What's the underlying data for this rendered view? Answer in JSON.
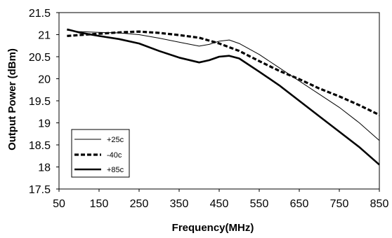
{
  "chart_data": {
    "type": "line",
    "title": "",
    "xlabel": "Frequency(MHz)",
    "ylabel": "Output Power (dBm)",
    "xlim": [
      50,
      850
    ],
    "ylim": [
      17.5,
      21.5
    ],
    "x_ticks": [
      "50",
      "150",
      "250",
      "350",
      "450",
      "550",
      "650",
      "750",
      "850"
    ],
    "y_ticks": [
      "17.5",
      "18",
      "18.5",
      "19",
      "19.5",
      "20",
      "20.5",
      "21",
      "21.5"
    ],
    "grid": false,
    "legend_position": "bottom-left",
    "series": [
      {
        "name": "+25c",
        "style": "thin",
        "color": "#000000",
        "x": [
          70,
          100,
          150,
          200,
          250,
          300,
          350,
          400,
          425,
          450,
          475,
          500,
          550,
          600,
          650,
          700,
          750,
          800,
          850
        ],
        "y": [
          21.1,
          21.07,
          21.05,
          21.04,
          21.0,
          20.92,
          20.83,
          20.74,
          20.78,
          20.85,
          20.88,
          20.8,
          20.55,
          20.25,
          19.95,
          19.65,
          19.35,
          19.0,
          18.6
        ]
      },
      {
        "name": "-40c",
        "style": "dashed",
        "color": "#000000",
        "x": [
          70,
          100,
          150,
          200,
          250,
          300,
          350,
          400,
          450,
          500,
          550,
          600,
          650,
          700,
          750,
          800,
          850
        ],
        "y": [
          20.97,
          20.99,
          21.02,
          21.05,
          21.07,
          21.04,
          20.99,
          20.93,
          20.8,
          20.63,
          20.4,
          20.18,
          19.99,
          19.78,
          19.6,
          19.4,
          19.18
        ]
      },
      {
        "name": "+85c",
        "style": "thick",
        "color": "#000000",
        "x": [
          70,
          100,
          150,
          200,
          250,
          300,
          350,
          400,
          425,
          450,
          475,
          500,
          550,
          600,
          650,
          700,
          750,
          800,
          850
        ],
        "y": [
          21.12,
          21.05,
          20.97,
          20.9,
          20.8,
          20.63,
          20.48,
          20.37,
          20.42,
          20.5,
          20.52,
          20.46,
          20.16,
          19.85,
          19.5,
          19.15,
          18.8,
          18.45,
          18.05
        ]
      }
    ]
  }
}
